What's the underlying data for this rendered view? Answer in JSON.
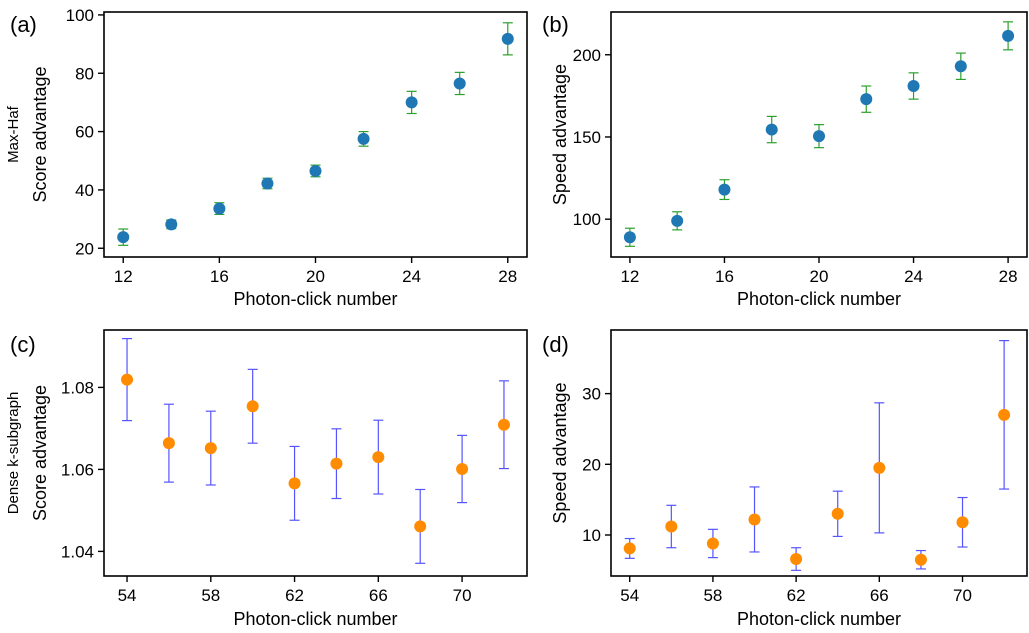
{
  "colors": {
    "blue_marker": "#1f77b4",
    "green_errorbar": "#2ca02c",
    "orange_marker": "#ff8c00",
    "blue_errorbar": "#5555ff"
  },
  "chart_data": [
    {
      "type": "scatter",
      "panel_label": "(a)",
      "xlabel": "Photon-click number",
      "ylabel": [
        "Max-Haf",
        "Score advantage"
      ],
      "xlim": [
        11.2,
        28.8
      ],
      "ylim": [
        17,
        101
      ],
      "xticks": [
        12,
        16,
        20,
        24,
        28
      ],
      "yticks": [
        20,
        40,
        60,
        80,
        100
      ],
      "grid": false,
      "marker_color": "#1f77b4",
      "errorbar_color": "#2ca02c",
      "x": [
        12,
        14,
        16,
        18,
        20,
        22,
        24,
        26,
        28
      ],
      "y": [
        23.8,
        28.2,
        33.6,
        42.2,
        46.5,
        57.5,
        70.0,
        76.5,
        91.8
      ],
      "err": [
        2.8,
        1.5,
        2.0,
        1.8,
        2.0,
        2.5,
        3.8,
        3.8,
        5.5
      ]
    },
    {
      "type": "scatter",
      "panel_label": "(b)",
      "xlabel": "Photon-click number",
      "ylabel": [
        "Speed advantage"
      ],
      "xlim": [
        11.2,
        28.8
      ],
      "ylim": [
        77,
        226
      ],
      "xticks": [
        12,
        16,
        20,
        24,
        28
      ],
      "yticks": [
        100,
        150,
        200
      ],
      "grid": false,
      "marker_color": "#1f77b4",
      "errorbar_color": "#2ca02c",
      "x": [
        12,
        14,
        16,
        18,
        20,
        22,
        24,
        26,
        28
      ],
      "y": [
        89.0,
        99.0,
        118.0,
        154.5,
        150.5,
        173.0,
        181.0,
        193.0,
        211.5
      ],
      "err": [
        5.5,
        5.5,
        6.0,
        8.0,
        7.0,
        8.0,
        8.0,
        8.0,
        8.5
      ]
    },
    {
      "type": "scatter",
      "panel_label": "(c)",
      "xlabel": "Photon-click number",
      "ylabel": [
        "Dense k-subgraph",
        "Score advantage"
      ],
      "xlim": [
        52.9,
        73.1
      ],
      "ylim": [
        1.034,
        1.094
      ],
      "xticks": [
        54,
        58,
        62,
        66,
        70
      ],
      "yticks": [
        1.04,
        1.06,
        1.08
      ],
      "yticklabels": [
        "1.04",
        "1.06",
        "1.08"
      ],
      "grid": false,
      "marker_color": "#ff8c00",
      "errorbar_color": "#5555ff",
      "x": [
        54,
        56,
        58,
        60,
        62,
        64,
        66,
        68,
        70,
        72
      ],
      "y": [
        1.0819,
        1.0664,
        1.0652,
        1.0754,
        1.0566,
        1.0614,
        1.063,
        1.0461,
        1.0601,
        1.0709
      ],
      "err": [
        0.01,
        0.0095,
        0.009,
        0.009,
        0.009,
        0.0085,
        0.009,
        0.009,
        0.0082,
        0.0107
      ]
    },
    {
      "type": "scatter",
      "panel_label": "(d)",
      "xlabel": "Photon-click number",
      "ylabel": [
        "Speed advantage"
      ],
      "xlim": [
        53.1,
        73.1
      ],
      "ylim": [
        4.2,
        39.0
      ],
      "xticks": [
        54,
        58,
        62,
        66,
        70
      ],
      "yticks": [
        10,
        20,
        30
      ],
      "grid": false,
      "marker_color": "#ff8c00",
      "errorbar_color": "#5555ff",
      "x": [
        54,
        56,
        58,
        60,
        62,
        64,
        66,
        68,
        70,
        72
      ],
      "y": [
        8.1,
        11.2,
        8.8,
        12.2,
        6.6,
        13.0,
        19.5,
        6.5,
        11.8,
        27.0
      ],
      "err": [
        1.4,
        3.0,
        2.0,
        4.6,
        1.6,
        3.2,
        9.2,
        1.3,
        3.5,
        10.5
      ]
    }
  ]
}
